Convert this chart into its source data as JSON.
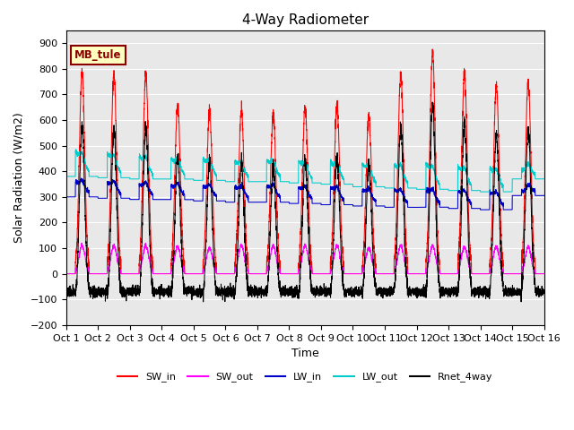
{
  "title": "4-Way Radiometer",
  "xlabel": "Time",
  "ylabel": "Solar Radiation (W/m2)",
  "ylim": [
    -200,
    950
  ],
  "yticks": [
    -200,
    -100,
    0,
    100,
    200,
    300,
    400,
    500,
    600,
    700,
    800,
    900
  ],
  "x_labels": [
    "Oct 1",
    "Oct 2",
    "Oct 3",
    "Oct 4",
    "Oct 5",
    "Oct 6",
    "Oct 7",
    "Oct 8",
    "Oct 9",
    "Oct 10",
    "Oct 11",
    "Oct 12",
    "Oct 13",
    "Oct 14",
    "Oct 15",
    "Oct 16"
  ],
  "annotation_text": "MB_tule",
  "annotation_color": "#8B0000",
  "annotation_bg": "#FFFFC0",
  "bg_color": "#E8E8E8",
  "legend": [
    {
      "label": "SW_in",
      "color": "#FF0000"
    },
    {
      "label": "SW_out",
      "color": "#FF00FF"
    },
    {
      "label": "LW_in",
      "color": "#0000CC"
    },
    {
      "label": "LW_out",
      "color": "#00CCCC"
    },
    {
      "label": "Rnet_4way",
      "color": "#000000"
    }
  ],
  "num_days": 15,
  "points_per_day": 288,
  "sw_in_peaks": [
    790,
    780,
    780,
    660,
    640,
    640,
    625,
    650,
    660,
    620,
    780,
    860,
    780,
    740,
    750
  ],
  "sw_out_peaks": [
    110,
    110,
    110,
    105,
    100,
    110,
    110,
    110,
    110,
    100,
    110,
    110,
    105,
    105,
    105
  ],
  "lw_out_day_start": [
    480,
    470,
    460,
    450,
    450,
    440,
    445,
    440,
    440,
    430,
    430,
    430,
    420,
    415,
    410
  ],
  "lw_out_day_end": [
    400,
    395,
    390,
    390,
    385,
    380,
    380,
    375,
    370,
    360,
    355,
    350,
    345,
    340,
    390
  ],
  "lw_in_day_start": [
    360,
    355,
    350,
    345,
    345,
    340,
    345,
    340,
    340,
    330,
    330,
    330,
    325,
    320,
    320
  ],
  "lw_in_day_end": [
    320,
    315,
    310,
    310,
    305,
    300,
    300,
    295,
    290,
    285,
    280,
    280,
    275,
    270,
    325
  ]
}
